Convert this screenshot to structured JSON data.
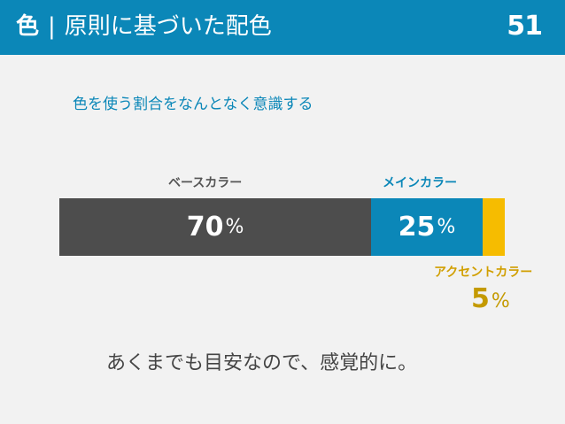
{
  "header": {
    "title_strong": "色",
    "separator": "|",
    "title_rest": "原則に基づいた配色",
    "page_number": "51"
  },
  "subtitle": "色を使う割合をなんとなく意識する",
  "chart_data": {
    "type": "bar",
    "orientation": "horizontal-stacked",
    "categories": [
      "ベースカラー",
      "メインカラー",
      "アクセントカラー"
    ],
    "values": [
      70,
      25,
      5
    ],
    "value_suffix": "%",
    "colors": [
      "#4d4d4d",
      "#0b87b8",
      "#f6bc00"
    ]
  },
  "labels": {
    "base": "ベースカラー",
    "main": "メインカラー",
    "accent": "アクセントカラー"
  },
  "percent_values": {
    "base": "70",
    "main": "25",
    "accent": "5",
    "sign": "%"
  },
  "footer": "あくまでも目安なので、感覚的に。"
}
